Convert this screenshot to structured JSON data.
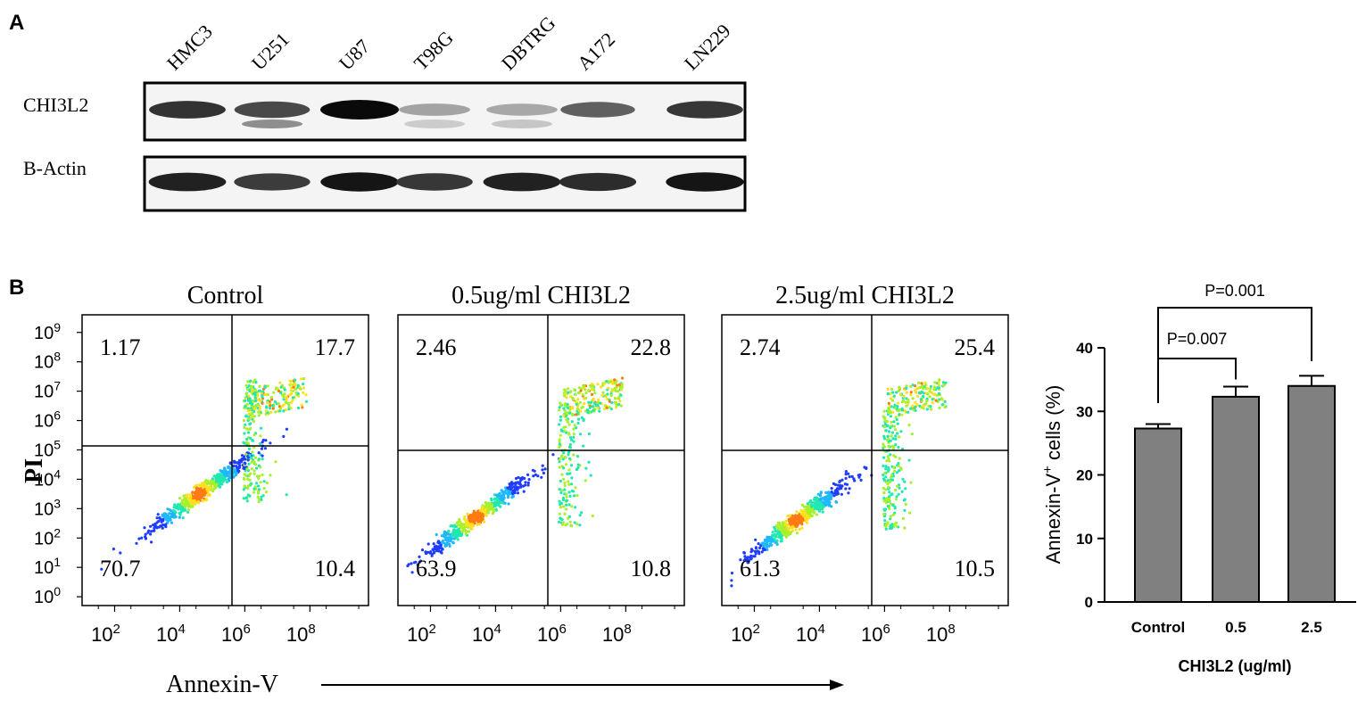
{
  "panel_a": {
    "label": "A",
    "cell_lines": [
      "HMC3",
      "U251",
      "U87",
      "T98G",
      "DBTRG",
      "A172",
      "LN229"
    ],
    "blots": [
      {
        "name": "CHI3L2",
        "intensity": [
          0.82,
          0.72,
          1.0,
          0.32,
          0.3,
          0.62,
          0.8
        ],
        "lower_band": [
          0.0,
          0.55,
          0.0,
          0.18,
          0.22,
          0.0,
          0.0
        ]
      },
      {
        "name": "B-Actin",
        "intensity": [
          0.9,
          0.78,
          0.95,
          0.8,
          0.9,
          0.85,
          0.95
        ],
        "lower_band": [
          0,
          0,
          0,
          0,
          0,
          0,
          0
        ]
      }
    ]
  },
  "panel_b": {
    "label": "B",
    "flow_plots": [
      {
        "title": "Control",
        "quadrants": {
          "ul": "1.17",
          "ur": "17.7",
          "ll": "70.7",
          "lr": "10.4"
        },
        "center": [
          4.6,
          3.5
        ]
      },
      {
        "title": "0.5ug/ml CHI3L2",
        "quadrants": {
          "ul": "2.46",
          "ur": "22.8",
          "ll": "63.9",
          "lr": "10.8"
        },
        "center": [
          3.4,
          2.7
        ]
      },
      {
        "title": "2.5ug/ml CHI3L2",
        "quadrants": {
          "ul": "2.74",
          "ur": "25.4",
          "ll": "61.3",
          "lr": "10.5"
        },
        "center": [
          3.3,
          2.6
        ]
      }
    ],
    "flow_y_label": "PI",
    "flow_x_label": "Annexin-V",
    "flow_y_ticks": [
      "10",
      "10",
      "10",
      "10",
      "10",
      "10",
      "10",
      "10",
      "10",
      "10"
    ],
    "flow_y_exps": [
      "0",
      "1",
      "2",
      "3",
      "4",
      "5",
      "6",
      "7",
      "8",
      "9"
    ],
    "flow_x_ticks": [
      "10",
      "10",
      "10",
      "10"
    ],
    "flow_x_exps": [
      "2",
      "4",
      "6",
      "8"
    ]
  },
  "chart_data": {
    "type": "bar",
    "categories": [
      "Control",
      "0.5",
      "2.5"
    ],
    "values": [
      27.3,
      32.3,
      34.0
    ],
    "errors": [
      0.7,
      1.6,
      1.6
    ],
    "ylabel": "Annexin-V",
    "ylabel_sup": "+",
    "ylabel_rest": " cells (%)",
    "xlabel": "CHI3L2 (ug/ml)",
    "ylim": [
      0,
      40
    ],
    "yticks": [
      "0",
      "10",
      "20",
      "30",
      "40"
    ],
    "bar_color": "#808080",
    "significance": [
      {
        "label": "P=0.007",
        "from": 0,
        "to": 1
      },
      {
        "label": "P=0.001",
        "from": 0,
        "to": 2
      }
    ]
  }
}
